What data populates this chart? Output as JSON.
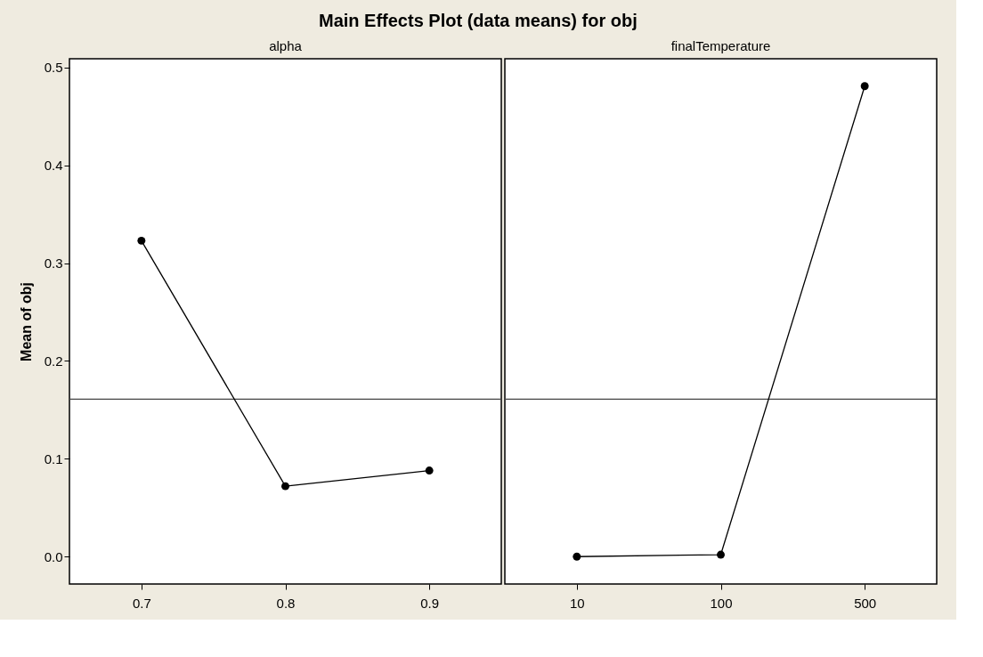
{
  "chart_data": [
    {
      "type": "line",
      "title": "Main Effects Plot (data means) for obj",
      "xlabel": "alpha",
      "ylabel": "Mean of obj",
      "categories": [
        "0.7",
        "0.8",
        "0.9"
      ],
      "series": [
        {
          "color": "#000000",
          "values": [
            0.323,
            0.072,
            0.088
          ]
        }
      ],
      "ylim": [
        -0.028,
        0.509
      ],
      "yticks": [
        {
          "value": 0,
          "label": "0.0"
        },
        0.1,
        0.2,
        0.3,
        0.4,
        0.5
      ],
      "ref_lines": [
        {
          "axis": "y",
          "value": 0.161,
          "color": "#444444"
        }
      ],
      "marker": "circle",
      "line_style": "solid",
      "grid": false
    },
    {
      "type": "line",
      "xlabel": "finalTemperature",
      "categories": [
        "10",
        "100",
        "500"
      ],
      "series": [
        {
          "color": "#000000",
          "values": [
            0.0,
            0.002,
            0.481
          ]
        }
      ],
      "ylim": [
        -0.028,
        0.509
      ],
      "yticks": [
        0,
        0.1,
        0.2,
        0.3,
        0.4,
        0.5
      ],
      "ref_lines": [
        {
          "axis": "y",
          "value": 0.161,
          "color": "#444444"
        }
      ],
      "marker": "circle",
      "line_style": "solid",
      "grid": false,
      "tick_labels": "x"
    }
  ]
}
